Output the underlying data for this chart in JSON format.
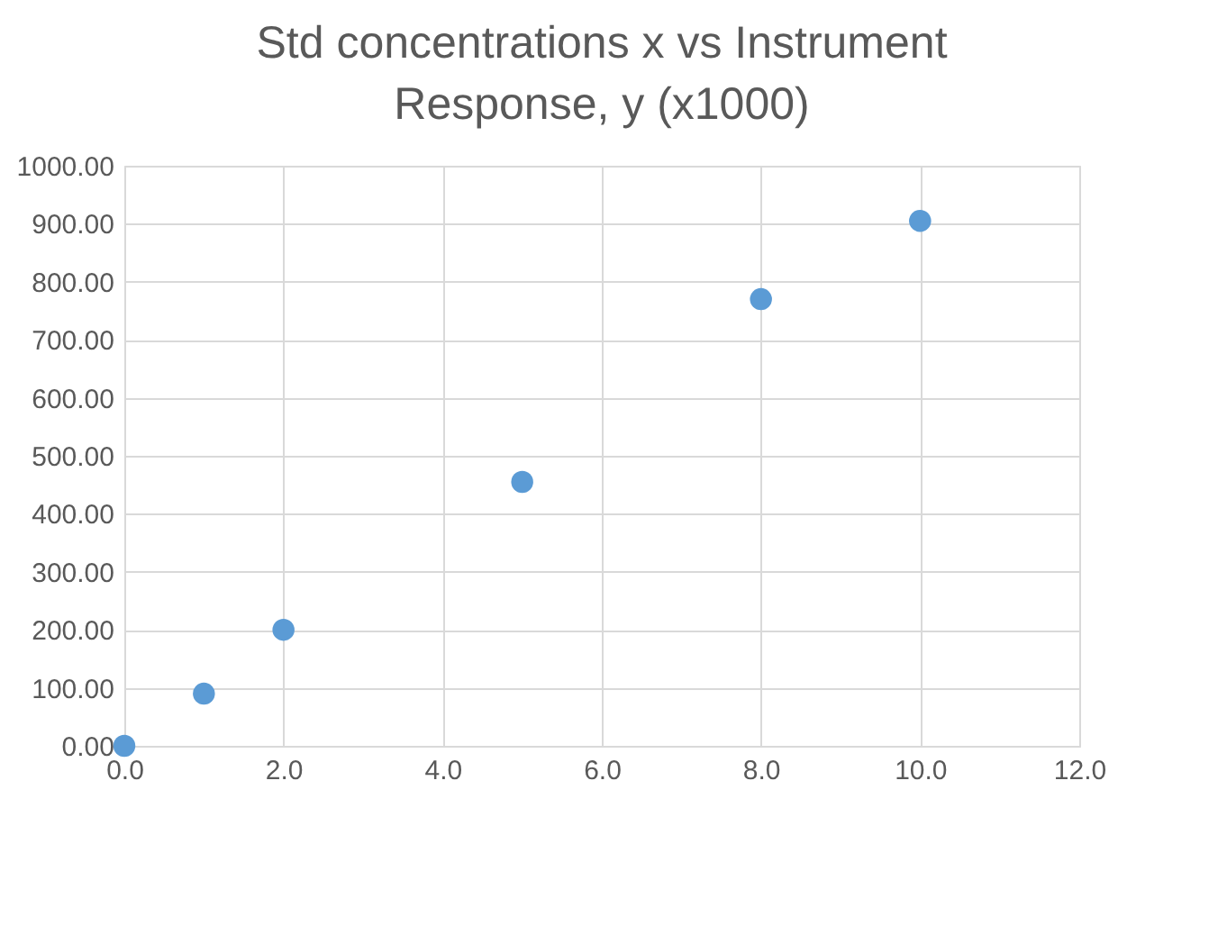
{
  "chart_data": {
    "type": "scatter",
    "title": "Std concentrations x vs Instrument Response, y (x1000)",
    "x": [
      0,
      1,
      2,
      5,
      8,
      10
    ],
    "values": [
      0,
      90,
      200,
      455,
      770,
      905
    ],
    "color": "#5b9bd5",
    "marker": "circle",
    "grid": true,
    "xlim": [
      0,
      12
    ],
    "xticks": [
      {
        "value": 0,
        "label": "0.0"
      },
      {
        "value": 2,
        "label": "2.0"
      },
      {
        "value": 4,
        "label": "4.0"
      },
      {
        "value": 6,
        "label": "6.0"
      },
      {
        "value": 8,
        "label": "8.0"
      },
      {
        "value": 10,
        "label": "10.0"
      },
      {
        "value": 12,
        "label": "12.0"
      }
    ],
    "ylim": [
      0,
      1000
    ],
    "yticks": [
      {
        "value": 0,
        "label": "0.00"
      },
      {
        "value": 100,
        "label": "100.00"
      },
      {
        "value": 200,
        "label": "200.00"
      },
      {
        "value": 300,
        "label": "300.00"
      },
      {
        "value": 400,
        "label": "400.00"
      },
      {
        "value": 500,
        "label": "500.00"
      },
      {
        "value": 600,
        "label": "600.00"
      },
      {
        "value": 700,
        "label": "700.00"
      },
      {
        "value": 800,
        "label": "800.00"
      },
      {
        "value": 900,
        "label": "900.00"
      },
      {
        "value": 1000,
        "label": "1000.00"
      }
    ]
  }
}
